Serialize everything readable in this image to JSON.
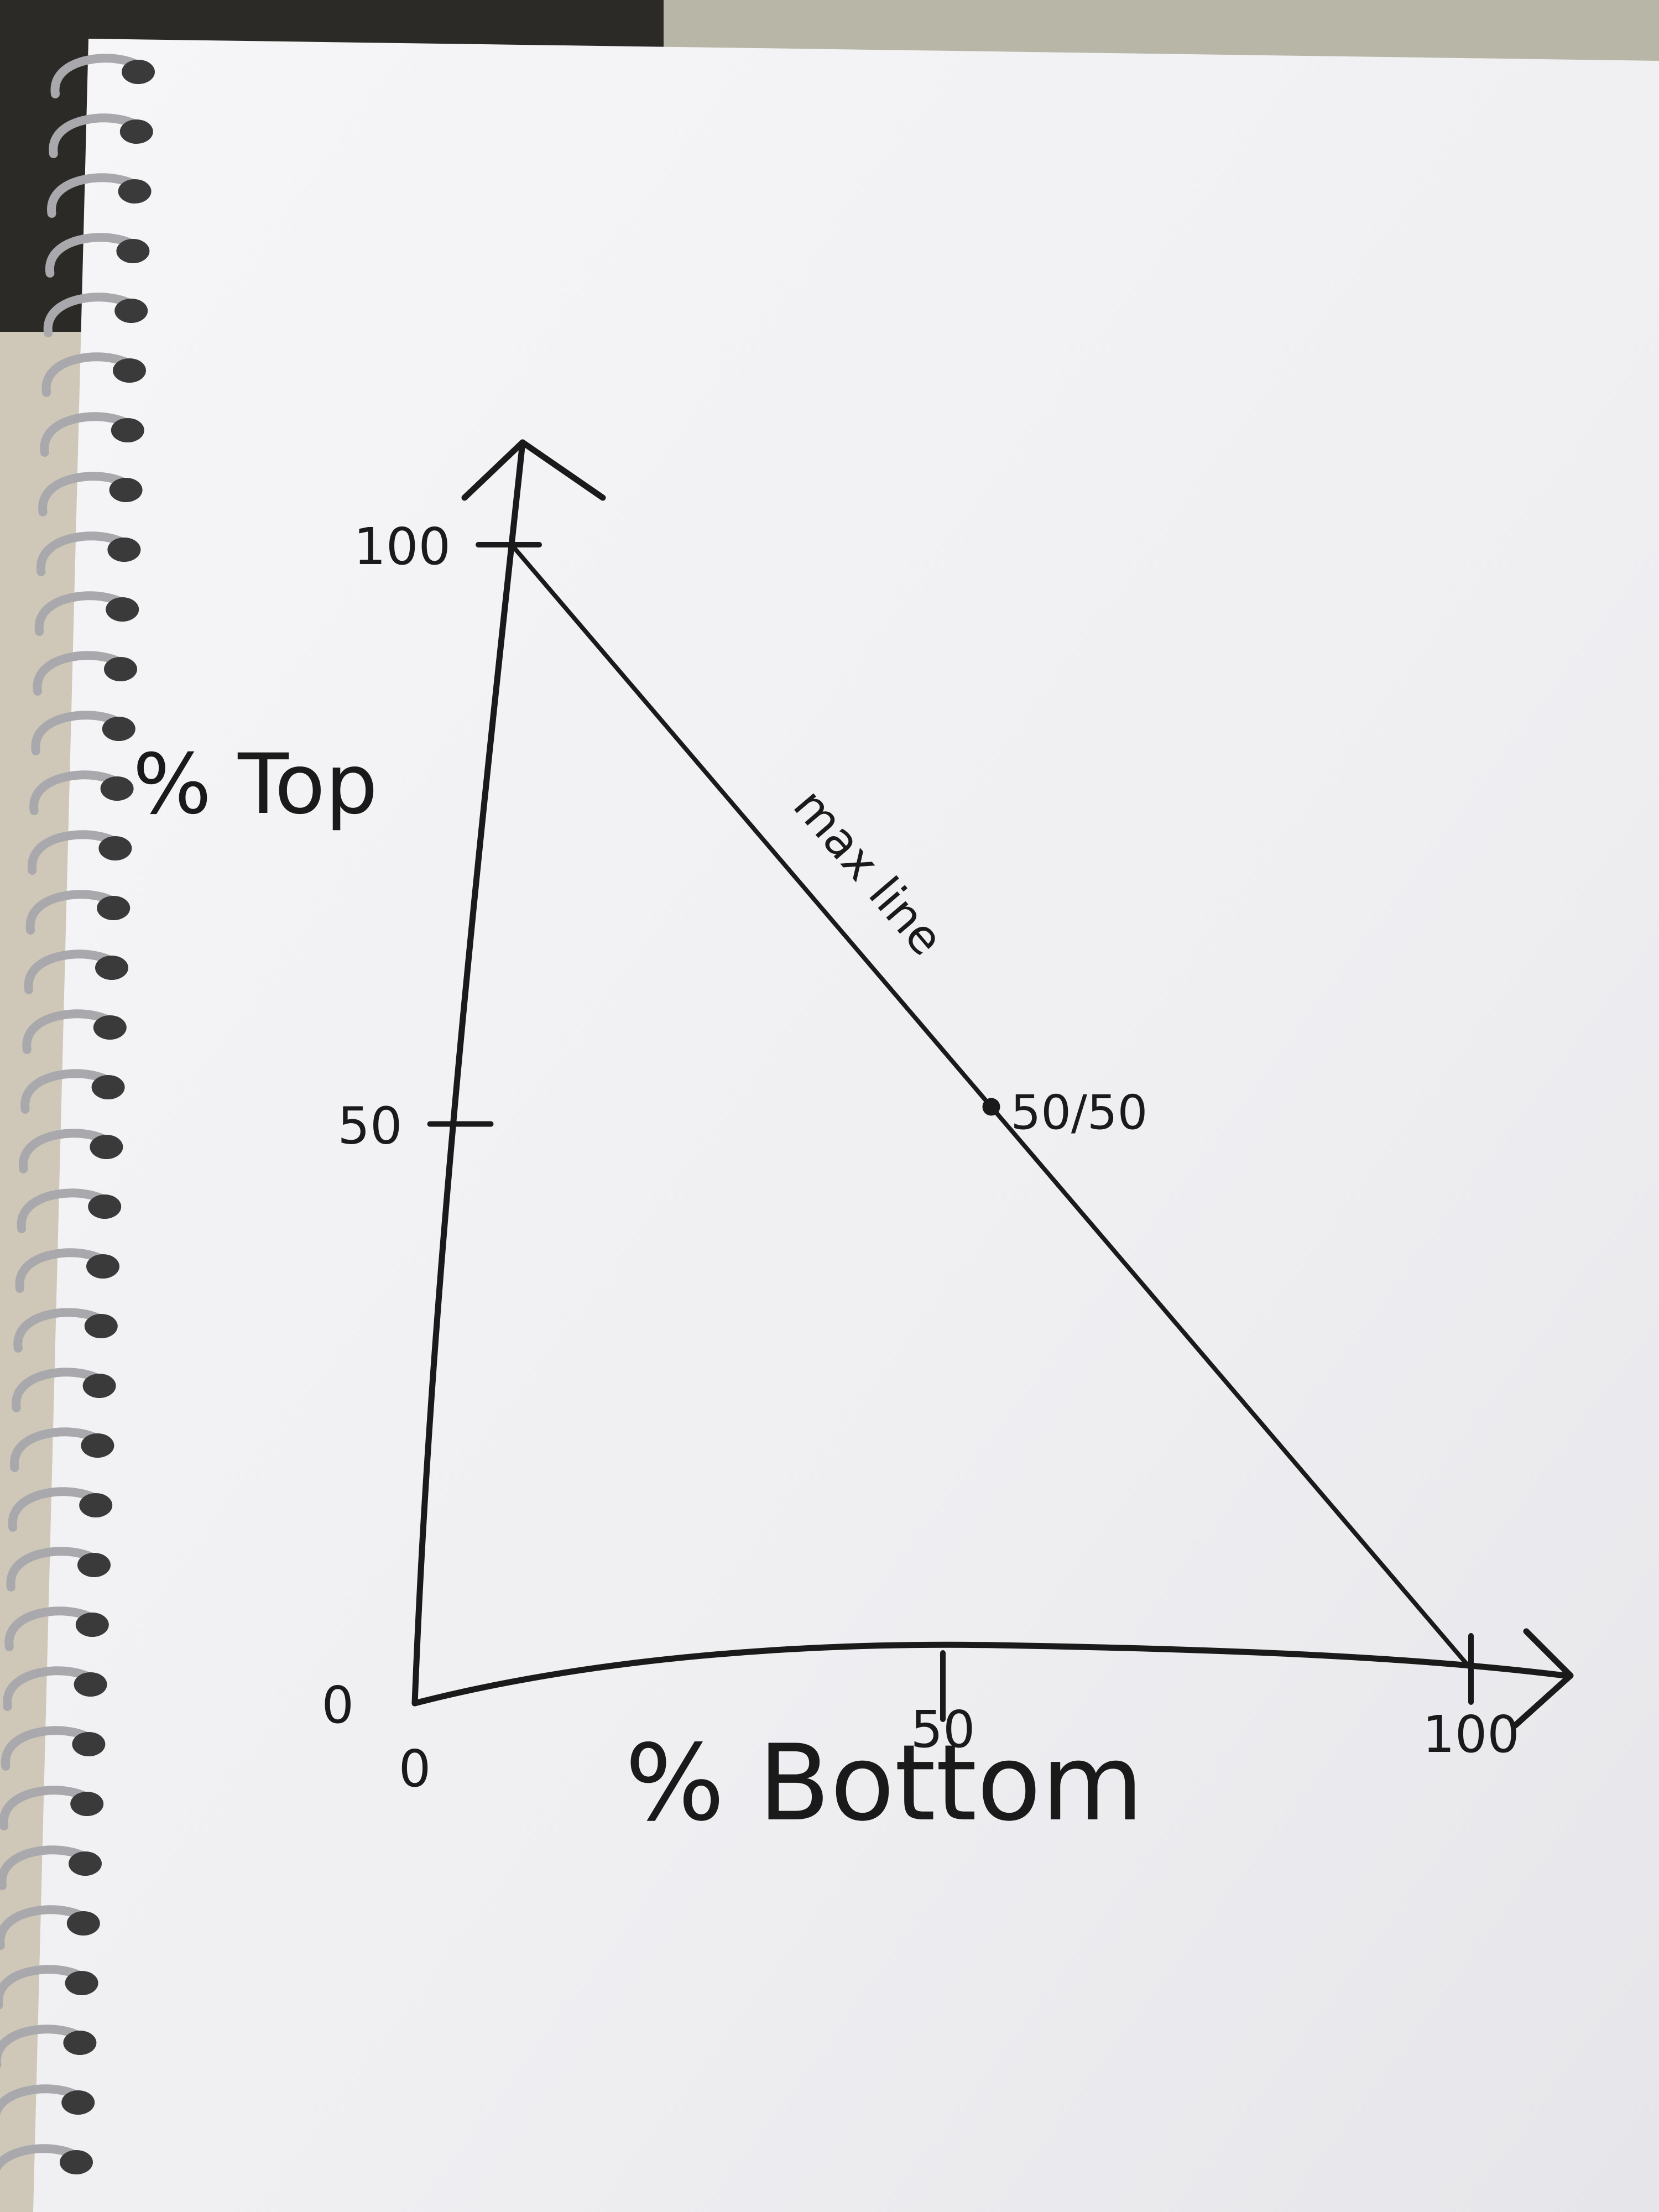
{
  "chart_data": {
    "type": "line",
    "title": "",
    "xlabel": "% Bottom",
    "ylabel": "% Top",
    "xlim": [
      0,
      100
    ],
    "ylim": [
      0,
      100
    ],
    "x_ticks": [
      {
        "value": 0,
        "label": "0"
      },
      {
        "value": 50,
        "label": "50"
      },
      {
        "value": 100,
        "label": "100"
      }
    ],
    "y_ticks": [
      {
        "value": 0,
        "label": "0"
      },
      {
        "value": 50,
        "label": "50"
      },
      {
        "value": 100,
        "label": "100"
      }
    ],
    "series": [
      {
        "name": "",
        "x": [
          0,
          50,
          100
        ],
        "y": [
          100,
          50,
          0
        ]
      }
    ],
    "line_label": "max line",
    "annotations": [
      {
        "x": 50,
        "y": 50,
        "label": "50/50",
        "marker": "dot"
      }
    ],
    "grid": false,
    "legend": "none",
    "colors": {
      "ink": "#1a1a1a",
      "paper": "#f3f3f5",
      "background": "#2a2a28"
    }
  }
}
